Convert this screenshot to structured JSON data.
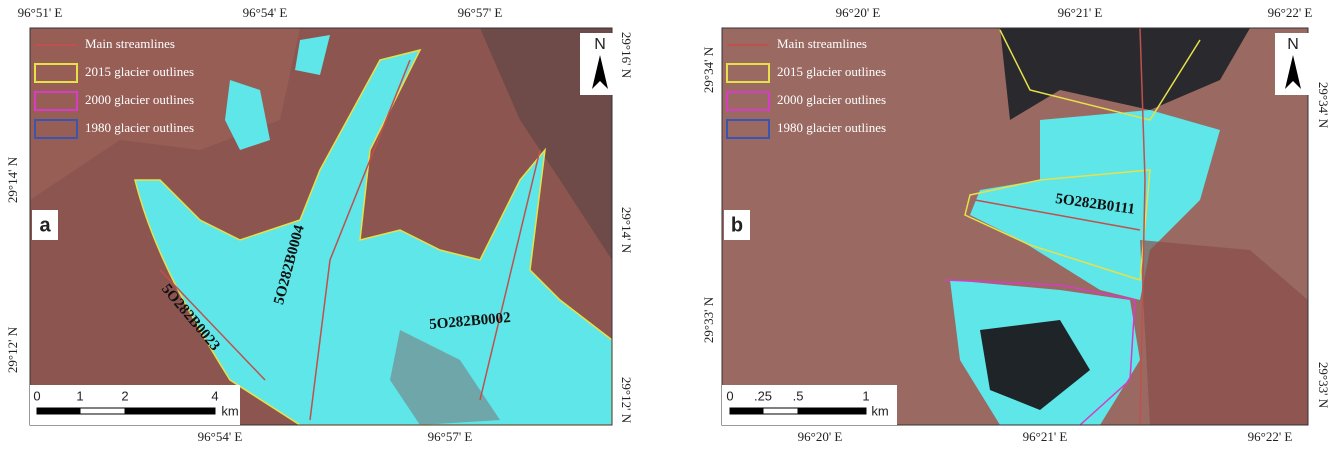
{
  "panels": [
    {
      "label": "a",
      "top_coords": [
        "96°51'  E",
        "96°54'  E",
        "96°57'  E"
      ],
      "bottom_coords": [
        "96°54'  E",
        "96°57'  E"
      ],
      "left_coords": [
        "29°14' N",
        "29°12' N"
      ],
      "right_coords": [
        "29°16' N",
        "29°14' N",
        "29°12' N"
      ],
      "legend": [
        "Main streamlines",
        "2015  glacier outlines",
        "2000  glacier outlines",
        "1980  glacier outlines"
      ],
      "north": "N",
      "glacier_ids": [
        "5O282B0023",
        "5O282B0004",
        "5O282B0002"
      ],
      "scale_labels": [
        "0",
        "1",
        "2",
        "4"
      ],
      "scale_unit": "km"
    },
    {
      "label": "b",
      "top_coords": [
        "96°20'  E",
        "96°21'  E",
        "96°22'  E"
      ],
      "bottom_coords": [
        "96°20'  E",
        "96°21'  E",
        "96°22'  E"
      ],
      "left_coords": [
        "29°34' N",
        "29°33' N"
      ],
      "right_coords": [
        "29°34' N",
        "29°33' N"
      ],
      "legend": [
        "Main streamlines",
        "2015  glacier outlines",
        "2000  glacier outlines",
        "1980  glacier outlines"
      ],
      "north": "N",
      "glacier_ids": [
        "5O282B0111"
      ],
      "scale_labels": [
        "0",
        ".25",
        ".5",
        "1"
      ],
      "scale_unit": "km"
    }
  ]
}
